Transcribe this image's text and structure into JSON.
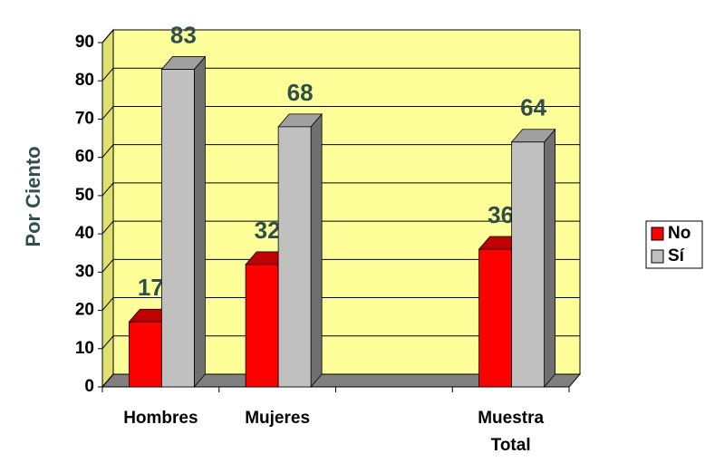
{
  "chart_data": {
    "type": "bar3d",
    "y_label": "Por Ciento",
    "categories": [
      "Hombres",
      "Mujeres",
      null,
      "Muestra Total"
    ],
    "series": [
      {
        "name": "No",
        "color": "#ff0000",
        "values": [
          17,
          32,
          null,
          36
        ]
      },
      {
        "name": "Sí",
        "color": "#c0c0c0",
        "values": [
          83,
          68,
          null,
          64
        ]
      }
    ],
    "ylim": [
      0,
      90
    ],
    "yticks": [
      0,
      10,
      20,
      30,
      40,
      50,
      60,
      70,
      80,
      90
    ],
    "grid": true,
    "legend": "right",
    "background": "#ffff99"
  }
}
